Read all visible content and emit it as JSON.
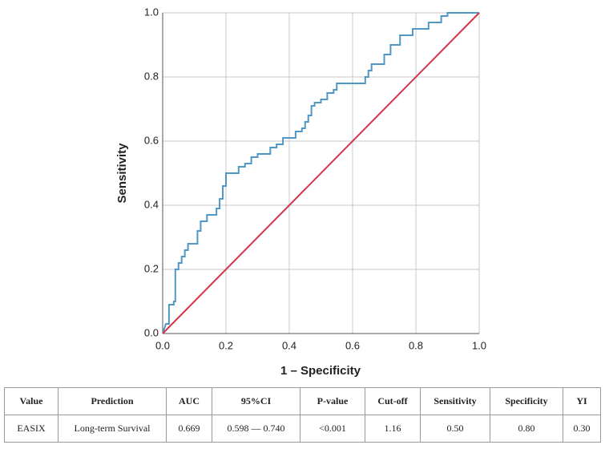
{
  "chart_data": {
    "type": "line",
    "xlabel": "1 – Specificity",
    "ylabel": "Sensitivity",
    "xlim": [
      0,
      1
    ],
    "ylim": [
      0,
      1
    ],
    "xticks": [
      {
        "value": 0,
        "label": "0.0"
      },
      0.2,
      0.4,
      0.6,
      0.8,
      {
        "value": 1,
        "label": "1.0"
      }
    ],
    "yticks": [
      {
        "value": 0,
        "label": "0.0"
      },
      0.2,
      0.4,
      0.6,
      0.8,
      {
        "value": 1,
        "label": "1.0"
      }
    ],
    "grid": true,
    "series": [
      {
        "color": "#4f97c4",
        "x": [
          0,
          0.01,
          0.02,
          0.02,
          0.035,
          0.035,
          0.04,
          0.04,
          0.05,
          0.05,
          0.06,
          0.06,
          0.07,
          0.07,
          0.08,
          0.08,
          0.11,
          0.11,
          0.12,
          0.12,
          0.14,
          0.14,
          0.17,
          0.17,
          0.18,
          0.18,
          0.19,
          0.19,
          0.2,
          0.2,
          0.24,
          0.24,
          0.26,
          0.26,
          0.28,
          0.28,
          0.3,
          0.3,
          0.34,
          0.34,
          0.36,
          0.36,
          0.38,
          0.38,
          0.42,
          0.42,
          0.44,
          0.44,
          0.45,
          0.45,
          0.46,
          0.46,
          0.47,
          0.47,
          0.48,
          0.48,
          0.5,
          0.5,
          0.52,
          0.52,
          0.54,
          0.54,
          0.55,
          0.55,
          0.64,
          0.64,
          0.65,
          0.65,
          0.66,
          0.66,
          0.7,
          0.7,
          0.72,
          0.72,
          0.75,
          0.75,
          0.79,
          0.79,
          0.84,
          0.84,
          0.88,
          0.88,
          0.9,
          0.9,
          1
        ],
        "y": [
          0,
          0.03,
          0.03,
          0.09,
          0.09,
          0.1,
          0.1,
          0.2,
          0.2,
          0.22,
          0.22,
          0.24,
          0.24,
          0.26,
          0.26,
          0.28,
          0.28,
          0.32,
          0.32,
          0.35,
          0.35,
          0.37,
          0.37,
          0.39,
          0.39,
          0.42,
          0.42,
          0.46,
          0.46,
          0.5,
          0.5,
          0.52,
          0.52,
          0.53,
          0.53,
          0.55,
          0.55,
          0.56,
          0.56,
          0.58,
          0.58,
          0.59,
          0.59,
          0.61,
          0.61,
          0.63,
          0.63,
          0.64,
          0.64,
          0.66,
          0.66,
          0.68,
          0.68,
          0.71,
          0.71,
          0.72,
          0.72,
          0.73,
          0.73,
          0.75,
          0.75,
          0.76,
          0.76,
          0.78,
          0.78,
          0.8,
          0.8,
          0.82,
          0.82,
          0.84,
          0.84,
          0.87,
          0.87,
          0.9,
          0.9,
          0.93,
          0.93,
          0.95,
          0.95,
          0.97,
          0.97,
          0.99,
          0.99,
          1,
          1
        ]
      },
      {
        "color": "#d6334a",
        "x": [
          0,
          1
        ],
        "y": [
          0,
          1
        ]
      }
    ]
  },
  "table": {
    "columns": [
      "Value",
      "Prediction",
      "AUC",
      "95%CI",
      "P-value",
      "Cut-off",
      "Sensitivity",
      "Specificity",
      "YI"
    ],
    "rows": [
      [
        "EASIX",
        "Long-term Survival",
        "0.669",
        "0.598 — 0.740",
        "<0.001",
        "1.16",
        "0.50",
        "0.80",
        "0.30"
      ]
    ]
  }
}
